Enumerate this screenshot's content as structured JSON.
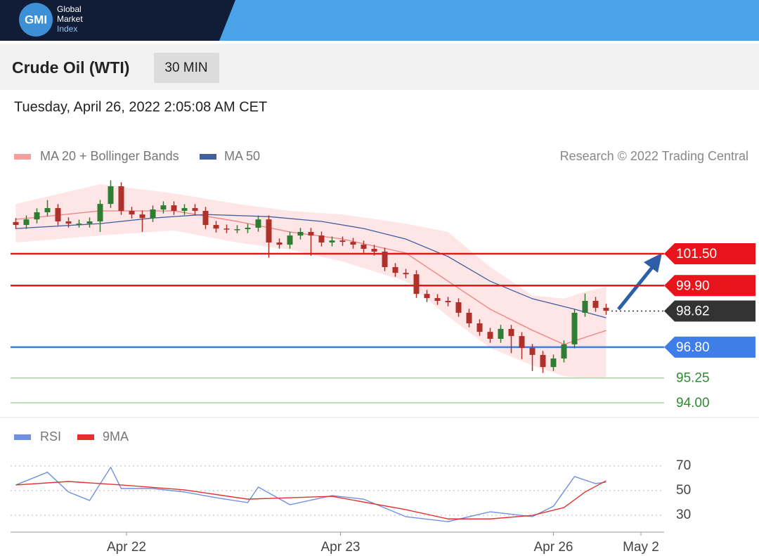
{
  "header": {
    "logo": "GMI",
    "brand": [
      "Global",
      "Market",
      "Index"
    ],
    "title": "Crude Oil (WTI)",
    "interval": "30 MIN",
    "timestamp": "Tuesday, April 26, 2022 2:05:08 AM CET",
    "credit": "Research © 2022 Trading Central"
  },
  "chart_data": [
    {
      "type": "candlestick",
      "xlim": [
        -0.5,
        61.5
      ],
      "ylim": [
        93.4,
        105.5
      ],
      "up_color": "#2f7d32",
      "down_color": "#b0302a",
      "open": [
        103.1,
        102.95,
        103.23,
        103.59,
        103.8,
        103.13,
        103.02,
        103.02,
        103.13,
        104.01,
        104.9,
        103.66,
        103.48,
        103.3,
        103.73,
        103.94,
        103.66,
        103.8,
        103.66,
        102.95,
        102.77,
        102.74,
        102.74,
        102.81,
        103.23,
        102.07,
        101.96,
        102.42,
        102.6,
        102.42,
        102.07,
        102.17,
        102.1,
        101.96,
        101.75,
        101.61,
        100.83,
        100.54,
        100.47,
        99.48,
        99.27,
        99.13,
        99.06,
        98.53,
        98.0,
        97.57,
        97.22,
        97.72,
        97.36,
        96.76,
        96.41,
        95.8,
        96.23,
        96.94,
        98.53,
        99.13,
        98.78
      ],
      "high": [
        103.3,
        103.43,
        103.79,
        104.2,
        104.0,
        103.33,
        103.22,
        103.33,
        104.21,
        105.2,
        105.1,
        103.86,
        103.68,
        103.93,
        104.14,
        104.14,
        104.0,
        104.0,
        103.86,
        103.15,
        102.97,
        102.94,
        103.01,
        103.43,
        103.43,
        102.27,
        102.62,
        102.8,
        102.8,
        102.62,
        102.37,
        102.37,
        102.3,
        102.16,
        101.95,
        101.81,
        101.03,
        100.74,
        100.67,
        99.68,
        99.47,
        99.33,
        99.26,
        98.73,
        98.2,
        97.77,
        97.92,
        97.92,
        97.56,
        96.96,
        96.61,
        96.43,
        97.14,
        98.73,
        99.5,
        99.33,
        98.98
      ],
      "low": [
        102.75,
        102.75,
        103.03,
        103.39,
        102.93,
        102.82,
        102.82,
        102.82,
        102.6,
        103.81,
        103.46,
        103.28,
        102.6,
        103.1,
        103.53,
        103.46,
        103.46,
        103.46,
        102.75,
        102.57,
        102.54,
        102.54,
        102.54,
        102.61,
        101.3,
        101.76,
        101.76,
        102.22,
        101.4,
        101.87,
        101.87,
        101.9,
        101.76,
        101.55,
        101.41,
        100.63,
        100.34,
        100.27,
        99.28,
        99.07,
        98.93,
        98.86,
        98.33,
        97.8,
        97.37,
        97.02,
        97.02,
        96.5,
        96.2,
        95.6,
        95.5,
        95.6,
        96.03,
        96.74,
        98.33,
        98.58,
        98.43
      ],
      "close": [
        102.95,
        103.23,
        103.59,
        103.8,
        103.13,
        103.02,
        103.02,
        103.13,
        104.01,
        104.9,
        103.66,
        103.48,
        103.3,
        103.73,
        103.94,
        103.66,
        103.8,
        103.66,
        102.95,
        102.77,
        102.74,
        102.74,
        102.81,
        103.23,
        102.07,
        101.96,
        102.42,
        102.6,
        102.42,
        102.07,
        102.17,
        102.1,
        101.96,
        101.75,
        101.61,
        100.83,
        100.54,
        100.47,
        99.48,
        99.27,
        99.13,
        99.06,
        98.53,
        98.0,
        97.57,
        97.22,
        97.72,
        97.36,
        96.76,
        96.41,
        95.8,
        96.23,
        96.94,
        98.53,
        99.13,
        98.78,
        98.63
      ],
      "bands": {
        "name": "MA 20 + Bollinger Bands",
        "color": "#f08080",
        "fill": "rgba(250,140,140,0.22)",
        "x": [
          0,
          8,
          15,
          21,
          26,
          31,
          37,
          41,
          45,
          49,
          52,
          54,
          56
        ],
        "upper": [
          104.01,
          105.0,
          104.54,
          104.01,
          103.66,
          103.48,
          103.02,
          102.6,
          100.83,
          99.41,
          99.24,
          99.59,
          99.84
        ],
        "lower": [
          102.07,
          102.42,
          102.67,
          102.07,
          101.71,
          101.11,
          100.12,
          98.35,
          96.76,
          95.88,
          95.34,
          95.24,
          95.24
        ],
        "values": [
          103.23,
          103.66,
          103.66,
          103.13,
          102.6,
          102.24,
          101.54,
          100.12,
          98.71,
          97.65,
          96.94,
          97.29,
          97.64
        ]
      },
      "series": [
        {
          "name": "MA 50",
          "color": "#3f5f9e",
          "x": [
            0,
            8,
            13,
            18,
            24,
            29,
            33,
            37,
            41,
            45,
            49,
            53,
            56
          ],
          "values": [
            102.77,
            103.02,
            103.3,
            103.48,
            103.37,
            103.13,
            102.77,
            102.24,
            101.36,
            100.12,
            99.24,
            98.71,
            98.28
          ]
        }
      ],
      "levels": [
        {
          "value": 101.5,
          "label": "101.50",
          "color": "#e8141b",
          "style": "box"
        },
        {
          "value": 99.9,
          "label": "99.90",
          "color": "#e8141b",
          "style": "box"
        },
        {
          "value": 98.62,
          "label": "98.62",
          "color": "#333333",
          "style": "box"
        },
        {
          "value": 96.8,
          "label": "96.80",
          "color": "#3f7de8",
          "style": "box"
        },
        {
          "value": 95.25,
          "label": "95.25",
          "color": "#2e8b2e",
          "style": "text"
        },
        {
          "value": 94,
          "label": "94.00",
          "color": "#2e8b2e",
          "style": "text"
        }
      ]
    },
    {
      "type": "line",
      "xlim": [
        -0.5,
        61.5
      ],
      "ylim": [
        17,
        83
      ],
      "yticks": [
        30,
        50,
        70
      ],
      "xticks": [
        {
          "value": 10.5,
          "label": "Apr 22"
        },
        {
          "value": 30.8,
          "label": "Apr 23"
        },
        {
          "value": 51,
          "label": "Apr 26"
        },
        {
          "value": 59.3,
          "label": "May 2"
        }
      ],
      "series": [
        {
          "name": "RSI",
          "color": "#6f8fe0",
          "x": [
            0,
            3,
            5,
            7,
            9,
            10,
            13,
            16,
            19,
            22,
            23,
            26,
            30,
            33,
            37,
            41,
            45,
            49,
            51,
            53,
            55,
            56
          ],
          "values": [
            54.6,
            64.9,
            48.9,
            42,
            68.9,
            51.7,
            51.7,
            48.9,
            44.3,
            40.3,
            52.9,
            38.6,
            46,
            43.1,
            28.9,
            24.9,
            32.9,
            28.9,
            37.4,
            61.4,
            55.7,
            56.9
          ]
        },
        {
          "name": "9MA",
          "color": "#e53030",
          "x": [
            0,
            5,
            10,
            16,
            22,
            30,
            37,
            41,
            45,
            49,
            52,
            54,
            56
          ],
          "values": [
            54.6,
            57.4,
            54.6,
            50.6,
            43.1,
            45.4,
            34.6,
            27.1,
            27.1,
            30,
            36.3,
            48.9,
            58
          ]
        }
      ]
    }
  ]
}
